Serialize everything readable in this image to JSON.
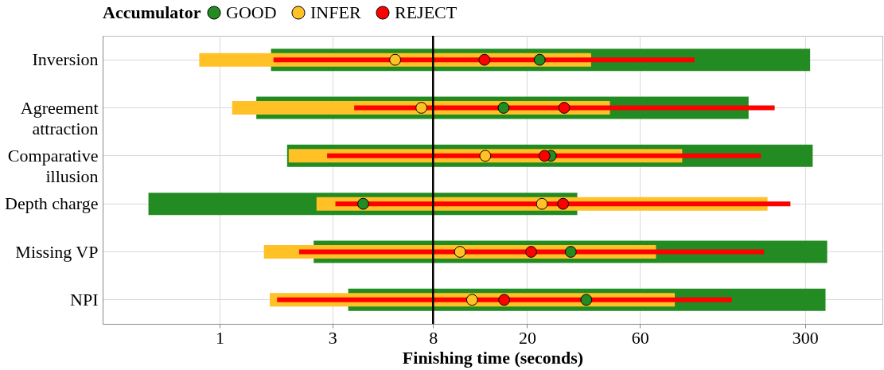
{
  "chart_data": {
    "type": "bar",
    "orientation": "horizontal",
    "xlabel": "Finishing time (seconds)",
    "legend_title": "Accumulator",
    "legend": "top",
    "grid": true,
    "log": "x",
    "marker": "circle",
    "categories": [
      "Inversion",
      "Agreement attraction",
      "Comparative illusion",
      "Depth charge",
      "Missing VP",
      "NPI"
    ],
    "xlim": [
      0.32,
      637
    ],
    "xticks": [
      1,
      3,
      8,
      20,
      60,
      300
    ],
    "ref_lines": [
      {
        "axis": "x",
        "value": 8,
        "color": "#000000"
      }
    ],
    "series": [
      {
        "color": "#228b22",
        "base": [
          1.65,
          1.43,
          1.93,
          0.5,
          2.5,
          3.5
        ],
        "values": [
          313.35,
          171.57,
          321.07,
          32.1,
          369.5,
          362.5
        ]
      },
      {
        "color": "#ffc125",
        "base": [
          0.82,
          1.13,
          1.96,
          2.57,
          1.54,
          1.63
        ],
        "values": [
          36.48,
          43.67,
          88.64,
          205.43,
          68.66,
          82.67
        ]
      },
      {
        "color": "#ff0000",
        "base": [
          1.69,
          3.71,
          2.85,
          3.09,
          2.17,
          1.75
        ],
        "values": [
          100.31,
          219.29,
          192.15,
          256.91,
          198.83,
          145.25
        ]
      },
      {
        "type": "scatter",
        "name": "GOOD",
        "color": "#228b22",
        "values": [
          22.6,
          15.9,
          25.2,
          4.05,
          30.6,
          35.6
        ]
      },
      {
        "type": "scatter",
        "name": "INFER",
        "color": "#ffc125",
        "values": [
          5.53,
          7.14,
          13.3,
          23.1,
          10.4,
          11.7
        ]
      },
      {
        "type": "scatter",
        "name": "REJECT",
        "color": "#ff0000",
        "values": [
          13.2,
          28.7,
          23.7,
          28.4,
          20.8,
          16.0
        ]
      }
    ]
  }
}
